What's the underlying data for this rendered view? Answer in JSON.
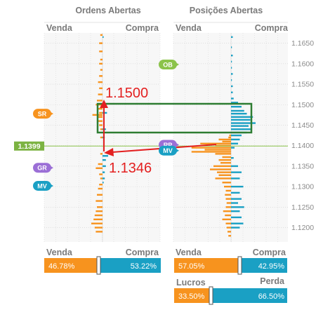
{
  "headers": {
    "ordens": "Ordens Abertas",
    "posicoes": "Posições Abertas"
  },
  "panel_labels": {
    "left": {
      "venda": "Venda",
      "compra": "Compra"
    },
    "right": {
      "venda": "Venda",
      "compra": "Compra"
    }
  },
  "colors": {
    "sell": "#f7931e",
    "buy": "#1aa0c4",
    "marker_green": "#2e7d32",
    "marker_red": "#e32020",
    "price_line": "#8bc34a"
  },
  "current_price": "1.1399",
  "annotations": {
    "upper": "1.1500",
    "lower": "1.1346"
  },
  "markers": [
    {
      "label": "OB",
      "price": 1.1598,
      "panel": "right",
      "color": "#8bc34a"
    },
    {
      "label": "SR",
      "price": 1.1478,
      "panel": "left",
      "color": "#f7931e"
    },
    {
      "label": "RP",
      "price": 1.1402,
      "panel": "right",
      "color": "#9b6fd6"
    },
    {
      "label": "MV",
      "price": 1.1388,
      "panel": "right",
      "color": "#1aa0c4"
    },
    {
      "label": "GR",
      "price": 1.1346,
      "panel": "left",
      "color": "#9b6fd6"
    },
    {
      "label": "MV",
      "price": 1.1302,
      "panel": "left",
      "color": "#1aa0c4"
    }
  ],
  "summary": {
    "ordens": {
      "venda_label": "Venda",
      "compra_label": "Compra",
      "venda_pct": "46.78%",
      "compra_pct": "53.22%"
    },
    "posicoes": {
      "venda_label": "Venda",
      "compra_label": "Compra",
      "venda_pct": "57.05%",
      "compra_pct": "42.95%"
    },
    "lucros": {
      "lucros_label": "Lucros",
      "perda_label": "Perda",
      "lucros_pct": "33.50%",
      "perda_pct": "66.50%"
    }
  },
  "chart_data": {
    "type": "bar",
    "y_axis": {
      "ticks": [
        "1.1650",
        "1.1600",
        "1.1550",
        "1.1500",
        "1.1450",
        "1.1400",
        "1.1350",
        "1.1300",
        "1.1250",
        "1.1200"
      ],
      "range": [
        1.1165,
        1.1675
      ]
    },
    "grid": true,
    "current_price": 1.1399,
    "panels": [
      {
        "title": "Ordens Abertas",
        "left_label": "Venda",
        "right_label": "Compra",
        "sell": [
          [
            1.167,
            2
          ],
          [
            1.165,
            3
          ],
          [
            1.163,
            3
          ],
          [
            1.161,
            2
          ],
          [
            1.16,
            3
          ],
          [
            1.1585,
            2
          ],
          [
            1.157,
            3
          ],
          [
            1.1555,
            4
          ],
          [
            1.154,
            3
          ],
          [
            1.1525,
            4
          ],
          [
            1.151,
            5
          ],
          [
            1.15,
            6
          ],
          [
            1.149,
            4
          ],
          [
            1.148,
            3
          ],
          [
            1.1475,
            9
          ],
          [
            1.147,
            5
          ],
          [
            1.146,
            4
          ],
          [
            1.145,
            3
          ],
          [
            1.144,
            2
          ],
          [
            1.142,
            2
          ],
          [
            1.138,
            2
          ],
          [
            1.1355,
            4
          ],
          [
            1.1345,
            6
          ],
          [
            1.133,
            3
          ],
          [
            1.132,
            2
          ],
          [
            1.1305,
            3
          ],
          [
            1.1295,
            4
          ],
          [
            1.128,
            5
          ],
          [
            1.1265,
            6
          ],
          [
            1.125,
            5
          ],
          [
            1.124,
            6
          ],
          [
            1.123,
            7
          ],
          [
            1.122,
            8
          ],
          [
            1.121,
            10
          ],
          [
            1.12,
            7
          ],
          [
            1.119,
            6
          ]
        ],
        "buy": [
          [
            1.1665,
            1
          ],
          [
            1.148,
            4
          ],
          [
            1.144,
            3
          ],
          [
            1.142,
            2
          ],
          [
            1.1375,
            5
          ],
          [
            1.1365,
            3
          ],
          [
            1.135,
            3
          ],
          [
            1.1335,
            2
          ],
          [
            1.132,
            2
          ],
          [
            1.131,
            1
          ]
        ]
      },
      {
        "title": "Posições Abertas",
        "left_label": "Venda",
        "right_label": "Compra",
        "sell": [
          [
            1.1425,
            2
          ],
          [
            1.142,
            3
          ],
          [
            1.1415,
            14
          ],
          [
            1.141,
            10
          ],
          [
            1.1405,
            35
          ],
          [
            1.14,
            18
          ],
          [
            1.1395,
            45
          ],
          [
            1.139,
            30
          ],
          [
            1.1385,
            45
          ],
          [
            1.138,
            18
          ],
          [
            1.1372,
            10
          ],
          [
            1.1365,
            14
          ],
          [
            1.1358,
            12
          ],
          [
            1.135,
            20
          ],
          [
            1.1342,
            24
          ],
          [
            1.1335,
            16
          ],
          [
            1.1328,
            14
          ],
          [
            1.132,
            18
          ],
          [
            1.131,
            10
          ],
          [
            1.13,
            8
          ],
          [
            1.129,
            6
          ],
          [
            1.128,
            7
          ],
          [
            1.127,
            6
          ],
          [
            1.126,
            5
          ],
          [
            1.125,
            6
          ],
          [
            1.124,
            9
          ],
          [
            1.123,
            7
          ],
          [
            1.122,
            10
          ],
          [
            1.121,
            6
          ],
          [
            1.12,
            5
          ],
          [
            1.119,
            4
          ],
          [
            1.118,
            3
          ]
        ],
        "buy": [
          [
            1.1665,
            2
          ],
          [
            1.164,
            1
          ],
          [
            1.162,
            2
          ],
          [
            1.1605,
            1
          ],
          [
            1.159,
            1
          ],
          [
            1.1575,
            2
          ],
          [
            1.156,
            1
          ],
          [
            1.1545,
            2
          ],
          [
            1.153,
            2
          ],
          [
            1.1515,
            3
          ],
          [
            1.1505,
            8
          ],
          [
            1.1495,
            12
          ],
          [
            1.1485,
            15
          ],
          [
            1.1478,
            18
          ],
          [
            1.147,
            25
          ],
          [
            1.1463,
            22
          ],
          [
            1.1455,
            28
          ],
          [
            1.1448,
            20
          ],
          [
            1.144,
            24
          ],
          [
            1.1432,
            18
          ],
          [
            1.1425,
            12
          ],
          [
            1.1415,
            10
          ],
          [
            1.1405,
            8
          ],
          [
            1.1395,
            4
          ],
          [
            1.137,
            3
          ],
          [
            1.135,
            8
          ],
          [
            1.1335,
            12
          ],
          [
            1.132,
            10
          ],
          [
            1.13,
            14
          ],
          [
            1.1285,
            10
          ],
          [
            1.127,
            12
          ],
          [
            1.126,
            8
          ],
          [
            1.125,
            15
          ],
          [
            1.124,
            10
          ],
          [
            1.1225,
            12
          ],
          [
            1.121,
            14
          ],
          [
            1.12,
            10
          ]
        ]
      }
    ]
  }
}
